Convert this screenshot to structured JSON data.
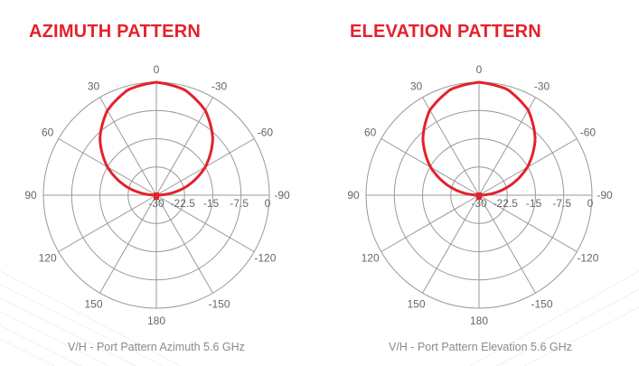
{
  "colors": {
    "title": "#e3222b",
    "pattern": "#e3222b",
    "grid": "#999999"
  },
  "chart_data": [
    {
      "type": "polar-line",
      "title": "AZIMUTH PATTERN",
      "caption": "V/H - Port Pattern Azimuth 5.6 GHz",
      "angle_ticks": [
        "0",
        "30",
        "60",
        "90",
        "120",
        "150",
        "180",
        "-150",
        "-120",
        "-90",
        "-60",
        "-30"
      ],
      "angle_values": [
        0,
        30,
        60,
        90,
        120,
        150,
        180,
        -150,
        -120,
        -90,
        -60,
        -30
      ],
      "radial_ticks": [
        "-30",
        "-22.5",
        "-15",
        "-7.5",
        "0"
      ],
      "radial_range": [
        -30,
        0
      ],
      "series": [
        {
          "name": "V/H Port",
          "angles": [
            -180,
            -150,
            -120,
            -105,
            -90,
            -75,
            -60,
            -45,
            -30,
            -15,
            0,
            15,
            30,
            45,
            60,
            75,
            90,
            105,
            120,
            150,
            180
          ],
          "values": [
            -30,
            -30,
            -30,
            -30,
            -30,
            -22.2,
            -15,
            -8.8,
            -4.0,
            -1.0,
            0,
            -1.0,
            -4.0,
            -8.8,
            -15,
            -22.2,
            -30,
            -30,
            -30,
            -30,
            -30
          ]
        }
      ]
    },
    {
      "type": "polar-line",
      "title": "ELEVATION PATTERN",
      "caption": "V/H - Port Pattern Elevation 5.6 GHz",
      "angle_ticks": [
        "0",
        "30",
        "60",
        "90",
        "120",
        "150",
        "180",
        "-150",
        "-120",
        "-90",
        "-60",
        "-30"
      ],
      "angle_values": [
        0,
        30,
        60,
        90,
        120,
        150,
        180,
        -150,
        -120,
        -90,
        -60,
        -30
      ],
      "radial_ticks": [
        "-30",
        "-22.5",
        "-15",
        "-7.5",
        "0"
      ],
      "radial_range": [
        -30,
        0
      ],
      "series": [
        {
          "name": "V/H Port",
          "angles": [
            -180,
            -150,
            -120,
            -105,
            -90,
            -75,
            -60,
            -45,
            -30,
            -15,
            0,
            15,
            30,
            45,
            60,
            75,
            90,
            105,
            120,
            150,
            180
          ],
          "values": [
            -30,
            -30,
            -30,
            -30,
            -30,
            -22.5,
            -15.2,
            -8.9,
            -3.9,
            -0.9,
            0,
            -0.9,
            -3.9,
            -8.9,
            -15.2,
            -22.5,
            -30,
            -30,
            -30,
            -30,
            -30
          ]
        }
      ]
    }
  ]
}
